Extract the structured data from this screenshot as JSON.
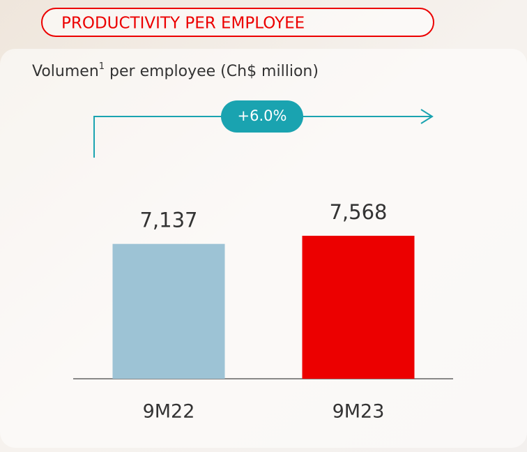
{
  "chart_data": {
    "type": "bar",
    "title": "PRODUCTIVITY PER EMPLOYEE",
    "subtitle": [
      "Volumen",
      "1",
      " per employee (Ch$ million)"
    ],
    "annotation": "+6.0%",
    "categories": [
      "9M22",
      "9M23"
    ],
    "values": [
      7137,
      7568
    ],
    "value_labels": [
      "7,137",
      "7,568"
    ],
    "colors": [
      "#9dc3d5",
      "#ec0000"
    ]
  }
}
